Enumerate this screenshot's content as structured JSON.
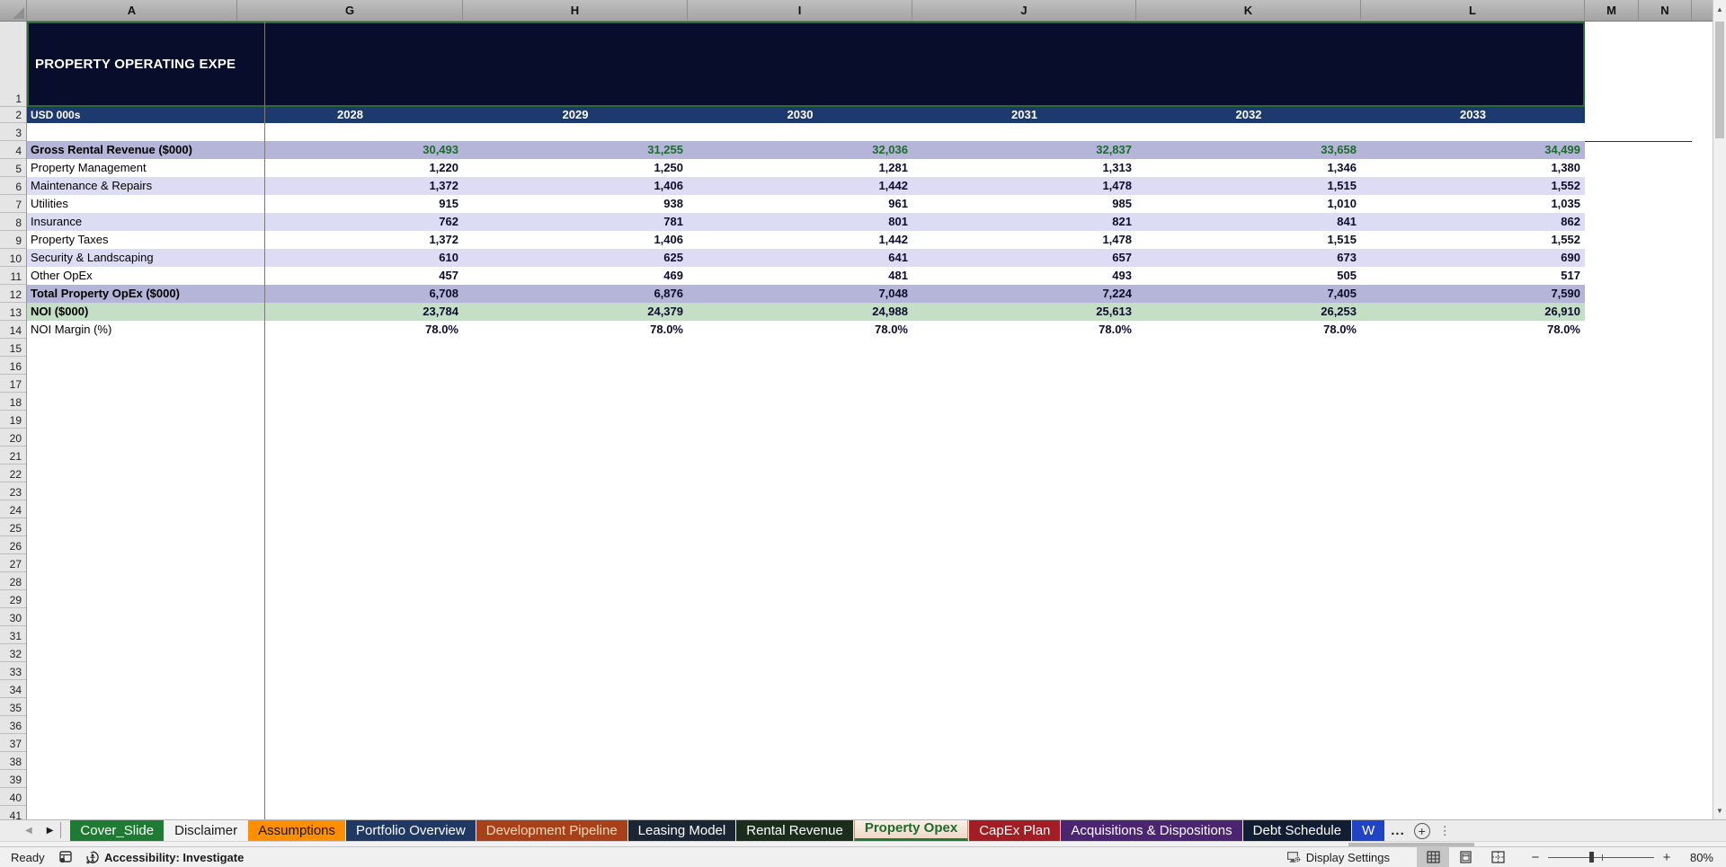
{
  "window": {
    "app": "Excel spreadsheet",
    "zoom_level": "80%"
  },
  "columns": [
    "A",
    "G",
    "H",
    "I",
    "J",
    "K",
    "L",
    "M",
    "N"
  ],
  "grid": {
    "visible_row_count": 41
  },
  "sheet": {
    "title": "PROPERTY OPERATING EXPE",
    "unit_label": "USD 000s",
    "years": [
      "2028",
      "2029",
      "2030",
      "2031",
      "2032",
      "2033"
    ],
    "rows": [
      {
        "num": 4,
        "label": "Gross Rental Revenue ($000)",
        "style": "banner",
        "value_color": "green",
        "values": [
          "30,493",
          "31,255",
          "32,036",
          "32,837",
          "33,658",
          "34,499"
        ]
      },
      {
        "num": 5,
        "label": "Property Management",
        "style": "white",
        "values": [
          "1,220",
          "1,250",
          "1,281",
          "1,313",
          "1,346",
          "1,380"
        ]
      },
      {
        "num": 6,
        "label": "Maintenance & Repairs",
        "style": "alt",
        "values": [
          "1,372",
          "1,406",
          "1,442",
          "1,478",
          "1,515",
          "1,552"
        ]
      },
      {
        "num": 7,
        "label": "Utilities",
        "style": "white",
        "values": [
          "915",
          "938",
          "961",
          "985",
          "1,010",
          "1,035"
        ]
      },
      {
        "num": 8,
        "label": "Insurance",
        "style": "alt",
        "values": [
          "762",
          "781",
          "801",
          "821",
          "841",
          "862"
        ]
      },
      {
        "num": 9,
        "label": "Property Taxes",
        "style": "white",
        "values": [
          "1,372",
          "1,406",
          "1,442",
          "1,478",
          "1,515",
          "1,552"
        ]
      },
      {
        "num": 10,
        "label": "Security & Landscaping",
        "style": "alt",
        "values": [
          "610",
          "625",
          "641",
          "657",
          "673",
          "690"
        ]
      },
      {
        "num": 11,
        "label": "Other OpEx",
        "style": "white",
        "values": [
          "457",
          "469",
          "481",
          "493",
          "505",
          "517"
        ]
      },
      {
        "num": 12,
        "label": "Total Property OpEx ($000)",
        "style": "banner",
        "values": [
          "6,708",
          "6,876",
          "7,048",
          "7,224",
          "7,405",
          "7,590"
        ]
      },
      {
        "num": 13,
        "label": "NOI ($000)",
        "style": "noi",
        "values": [
          "23,784",
          "24,379",
          "24,988",
          "25,613",
          "26,253",
          "26,910"
        ]
      },
      {
        "num": 14,
        "label": "NOI Margin (%)",
        "style": "plain",
        "values": [
          "78.0%",
          "78.0%",
          "78.0%",
          "78.0%",
          "78.0%",
          "78.0%"
        ]
      }
    ]
  },
  "tabs": [
    {
      "label": "Cover_Slide",
      "bg": "#1e7b34",
      "fg": "#ffffff"
    },
    {
      "label": "Disclaimer",
      "bg": "#f2f2f2",
      "fg": "#1a1a1a"
    },
    {
      "label": "Assumptions",
      "bg": "#ff8e00",
      "fg": "#141414"
    },
    {
      "label": "Portfolio Overview",
      "bg": "#1f3864",
      "fg": "#ffffff"
    },
    {
      "label": "Development Pipeline",
      "bg": "#a8411a",
      "fg": "#fad9b8"
    },
    {
      "label": "Leasing Model",
      "bg": "#1b2634",
      "fg": "#ffffff"
    },
    {
      "label": "Rental Revenue",
      "bg": "#1b2e1b",
      "fg": "#ffffff"
    },
    {
      "label": "Property Opex",
      "bg": "",
      "fg": "#1d6b2f",
      "active": true
    },
    {
      "label": "CapEx Plan",
      "bg": "#a21e24",
      "fg": "#ffffff"
    },
    {
      "label": "Acquisitions & Dispositions",
      "bg": "#4b2472",
      "fg": "#ffffff"
    },
    {
      "label": "Debt Schedule",
      "bg": "#111d33",
      "fg": "#ffffff"
    },
    {
      "label": "W",
      "bg": "#2144c7",
      "fg": "#ffffff",
      "truncated": true
    }
  ],
  "tab_overflow_label": "...",
  "status_bar": {
    "ready": "Ready",
    "accessibility": "Accessibility: Investigate",
    "display_settings": "Display Settings",
    "zoom_level": "80%"
  },
  "colors": {
    "title_bg": "#070d2b",
    "header_row_bg": "#1c3a6e",
    "banner_row_bg": "#b4b5d8",
    "alt_row_bg": "#dcddf4",
    "noi_row_bg": "#c4dfc6",
    "revenue_value": "#1e6b2e",
    "active_tab_accent": "#1e7b34"
  }
}
